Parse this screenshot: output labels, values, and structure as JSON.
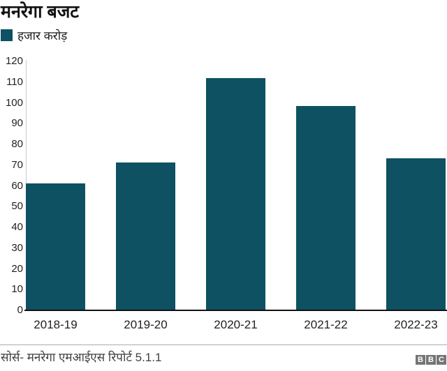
{
  "chart": {
    "title": "मनरेगा बजट",
    "legend_label": "हजार करोड़",
    "source": "सोर्स- मनरेगा एमआईएस रिपोर्ट 5.1.1"
  },
  "chart_data": {
    "type": "bar",
    "title": "मनरेगा बजट",
    "legend": [
      "हजार करोड़"
    ],
    "legend_position": "top-left",
    "categories": [
      "2018-19",
      "2019-20",
      "2020-21",
      "2021-22",
      "2022-23"
    ],
    "values": [
      61,
      71,
      111.5,
      98,
      73
    ],
    "xlabel": "",
    "ylabel": "हजार करोड़",
    "ylim": [
      0,
      120
    ],
    "ytick_step": 10,
    "grid": false,
    "source": "सोर्स- मनरेगा एमआईएस रिपोर्ट 5.1.1"
  },
  "colors": {
    "bar": "#0e5163",
    "axis_line": "#cccccc",
    "baseline": "#111111",
    "divider": "#ababab",
    "logo_block": "#757575"
  },
  "footer": {
    "logo_letters": [
      "B",
      "B",
      "C"
    ]
  }
}
